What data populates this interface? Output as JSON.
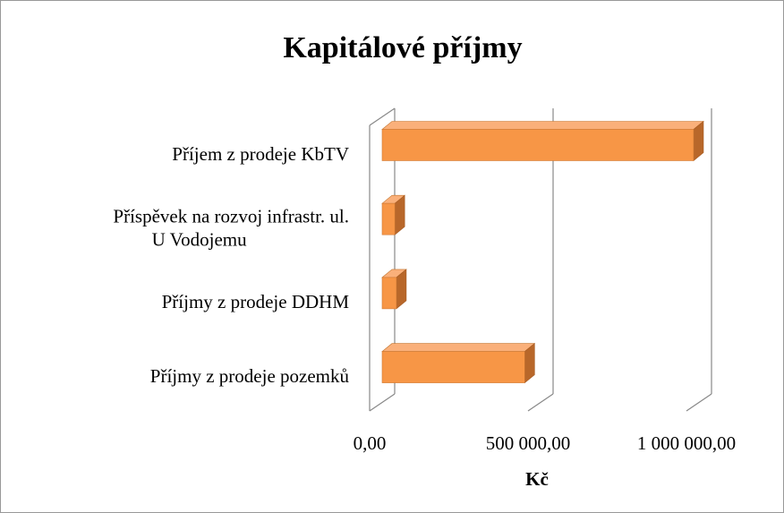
{
  "chart_data": {
    "type": "bar3d",
    "orientation": "horizontal",
    "title": "Kapitálové příjmy",
    "categories": [
      "Příjem z prodeje KbTV",
      "Příspěvek na rozvoj infrastr. ul. U Vodojemu",
      "Příjmy z prodeje DDHM",
      "Příjmy z prodeje pozemků"
    ],
    "values": [
      983000,
      40000,
      45000,
      450000
    ],
    "color": "#f79646",
    "xlabel": "Kč",
    "xlim": [
      0,
      1000000
    ],
    "xticks": [
      {
        "value": 0,
        "label": "0,00"
      },
      {
        "value": 500000,
        "label": "500 000,00"
      },
      {
        "value": 1000000,
        "label": "1 000 000,00"
      }
    ],
    "grid": true
  }
}
